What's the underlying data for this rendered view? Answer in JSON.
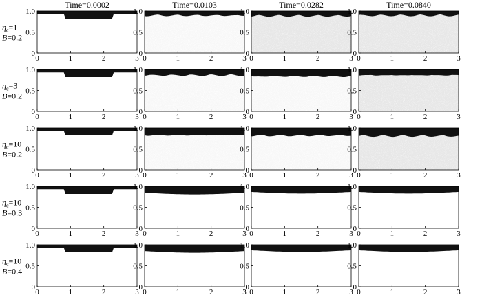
{
  "figure": {
    "column_titles": [
      "Time=0.0002",
      "Time=0.0103",
      "Time=0.0282",
      "Time=0.0840"
    ],
    "row_labels": [
      {
        "eta_symbol": "η",
        "eta_sub": "c",
        "eta_value": "=1",
        "b_symbol": "B",
        "b_value": "=0.2"
      },
      {
        "eta_symbol": "η",
        "eta_sub": "c",
        "eta_value": "=3",
        "b_symbol": "B",
        "b_value": "=0.2"
      },
      {
        "eta_symbol": "η",
        "eta_sub": "c",
        "eta_value": "=10",
        "b_symbol": "B",
        "b_value": "=0.2"
      },
      {
        "eta_symbol": "η",
        "eta_sub": "c",
        "eta_value": "=10",
        "b_symbol": "B",
        "b_value": "=0.3"
      },
      {
        "eta_symbol": "η",
        "eta_sub": "c",
        "eta_value": "=10",
        "b_symbol": "B",
        "b_value": "=0.4"
      }
    ],
    "x_ticks": [
      "0",
      "1",
      "2",
      "3"
    ],
    "y_ticks": [
      "0",
      "0.5",
      "1.0"
    ]
  },
  "chart_data": {
    "type": "heatmap",
    "layout": "5 rows x 4 columns of small-multiple field snapshots",
    "xlim": [
      0,
      3
    ],
    "ylim": [
      0,
      1
    ],
    "grid": false,
    "colors": {
      "dense_layer": "#111111",
      "background_light": "#f1f1f1",
      "background_grey": "#d6d6d6"
    },
    "panels": [
      [
        {
          "top_layer_bottom": 0.93,
          "depression_from": 0.85,
          "depression_to": 2.25,
          "depression_depth": 0.82,
          "background": "white"
        },
        {
          "top_layer_bottom": 0.91,
          "background": "speckled-light"
        },
        {
          "top_layer_bottom": 0.9,
          "background": "speckled-grey"
        },
        {
          "top_layer_bottom": 0.91,
          "background": "speckled-grey"
        }
      ],
      [
        {
          "top_layer_bottom": 0.93,
          "depression_from": 0.85,
          "depression_to": 2.25,
          "depression_depth": 0.82,
          "background": "white"
        },
        {
          "top_layer_bottom": 0.88,
          "background": "speckled-light"
        },
        {
          "top_layer_bottom": 0.85,
          "background": "speckled-light"
        },
        {
          "top_layer_bottom": 0.88,
          "background": "speckled-grey"
        }
      ],
      [
        {
          "top_layer_bottom": 0.93,
          "depression_from": 0.85,
          "depression_to": 2.25,
          "depression_depth": 0.82,
          "background": "white"
        },
        {
          "top_layer_bottom": 0.84,
          "background": "speckled-light"
        },
        {
          "top_layer_bottom": 0.83,
          "background": "speckled-light"
        },
        {
          "top_layer_bottom": 0.82,
          "background": "speckled-grey"
        }
      ],
      [
        {
          "top_layer_bottom": 0.93,
          "depression_from": 0.85,
          "depression_to": 2.25,
          "depression_depth": 0.82,
          "background": "white"
        },
        {
          "top_layer_bottom": 0.85,
          "background": "white"
        },
        {
          "top_layer_bottom": 0.87,
          "background": "white"
        },
        {
          "top_layer_bottom": 0.87,
          "background": "white"
        }
      ],
      [
        {
          "top_layer_bottom": 0.93,
          "depression_from": 0.85,
          "depression_to": 2.25,
          "depression_depth": 0.82,
          "background": "white"
        },
        {
          "top_layer_bottom": 0.85,
          "background": "white"
        },
        {
          "top_layer_bottom": 0.87,
          "background": "white"
        },
        {
          "top_layer_bottom": 0.87,
          "background": "white"
        }
      ]
    ]
  }
}
